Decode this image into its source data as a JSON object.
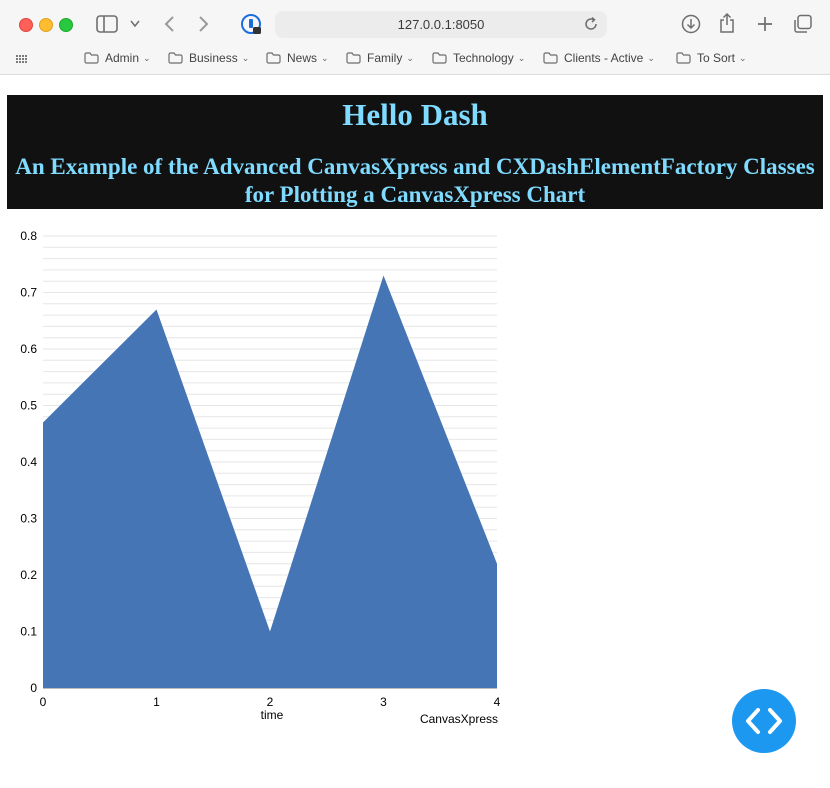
{
  "browser": {
    "url": "127.0.0.1:8050",
    "bookmarks": [
      "Admin",
      "Business",
      "News",
      "Family",
      "Technology",
      "Clients - Active",
      "To Sort"
    ]
  },
  "page": {
    "title": "Hello Dash",
    "subtitle": "An Example of the Advanced CanvasXpress and CXDashElementFactory Classes for Plotting a CanvasXpress Chart"
  },
  "chart_data": {
    "type": "area",
    "x": [
      0,
      1,
      2,
      3,
      4
    ],
    "values": [
      0.47,
      0.67,
      0.1,
      0.73,
      0.22
    ],
    "xlabel": "time",
    "ylabel": "",
    "ylim": [
      0,
      0.8
    ],
    "yticks": [
      0,
      0.1,
      0.2,
      0.3,
      0.4,
      0.5,
      0.6,
      0.7,
      0.8
    ],
    "xticks": [
      0,
      1,
      2,
      3,
      4
    ],
    "credit": "CanvasXpress",
    "fill_color": "#4575b4",
    "grid": true
  },
  "colors": {
    "header_bg": "#111111",
    "title_color": "#7fdbff",
    "fab_color": "#1d98f0"
  }
}
